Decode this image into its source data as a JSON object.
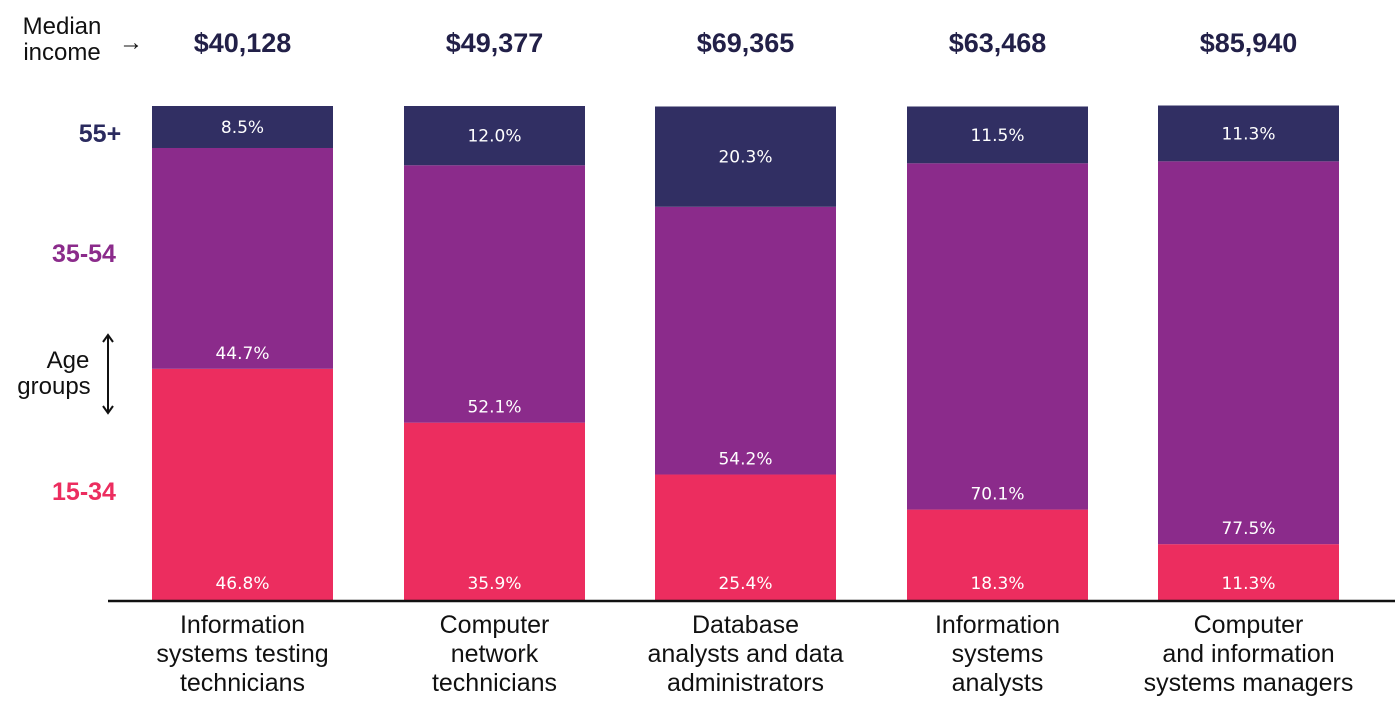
{
  "chart_data": {
    "type": "bar",
    "stacked": true,
    "orientation": "vertical",
    "header_label_line1": "Median",
    "header_label_line2": "income",
    "header_arrow": "→",
    "age_groups_label_line1": "Age",
    "age_groups_label_line2": "groups",
    "categories": [
      [
        "Information",
        "systems testing",
        "technicians"
      ],
      [
        "Computer",
        "network",
        "technicians"
      ],
      [
        "Database",
        "analysts and data",
        "administrators"
      ],
      [
        "Information",
        "systems",
        "analysts"
      ],
      [
        "Computer",
        "and information",
        "systems managers"
      ]
    ],
    "median_income": [
      "$40,128",
      "$49,377",
      "$69,365",
      "$63,468",
      "$85,940"
    ],
    "series": [
      {
        "name": "15-34",
        "values": [
          46.8,
          35.9,
          25.4,
          18.3,
          11.3
        ],
        "labels": [
          "46.8%",
          "35.9%",
          "25.4%",
          "18.3%",
          "11.3%"
        ],
        "color": "#ec2d5f"
      },
      {
        "name": "35-54",
        "values": [
          44.7,
          52.1,
          54.2,
          70.1,
          77.5
        ],
        "labels": [
          "44.7%",
          "52.1%",
          "54.2%",
          "70.1%",
          "77.5%"
        ],
        "color": "#8b2b8b"
      },
      {
        "name": "55+",
        "values": [
          8.5,
          12.0,
          20.3,
          11.5,
          11.3
        ],
        "labels": [
          "8.5%",
          "12.0%",
          "20.3%",
          "11.5%",
          "11.3%"
        ],
        "color": "#312f63"
      }
    ],
    "legend_colors": {
      "55+": "#2a2a5e",
      "35-54": "#8b2b8b",
      "15-34": "#ec2d5f"
    },
    "ylim": [
      0,
      100
    ],
    "grid": false,
    "legend": "left"
  }
}
